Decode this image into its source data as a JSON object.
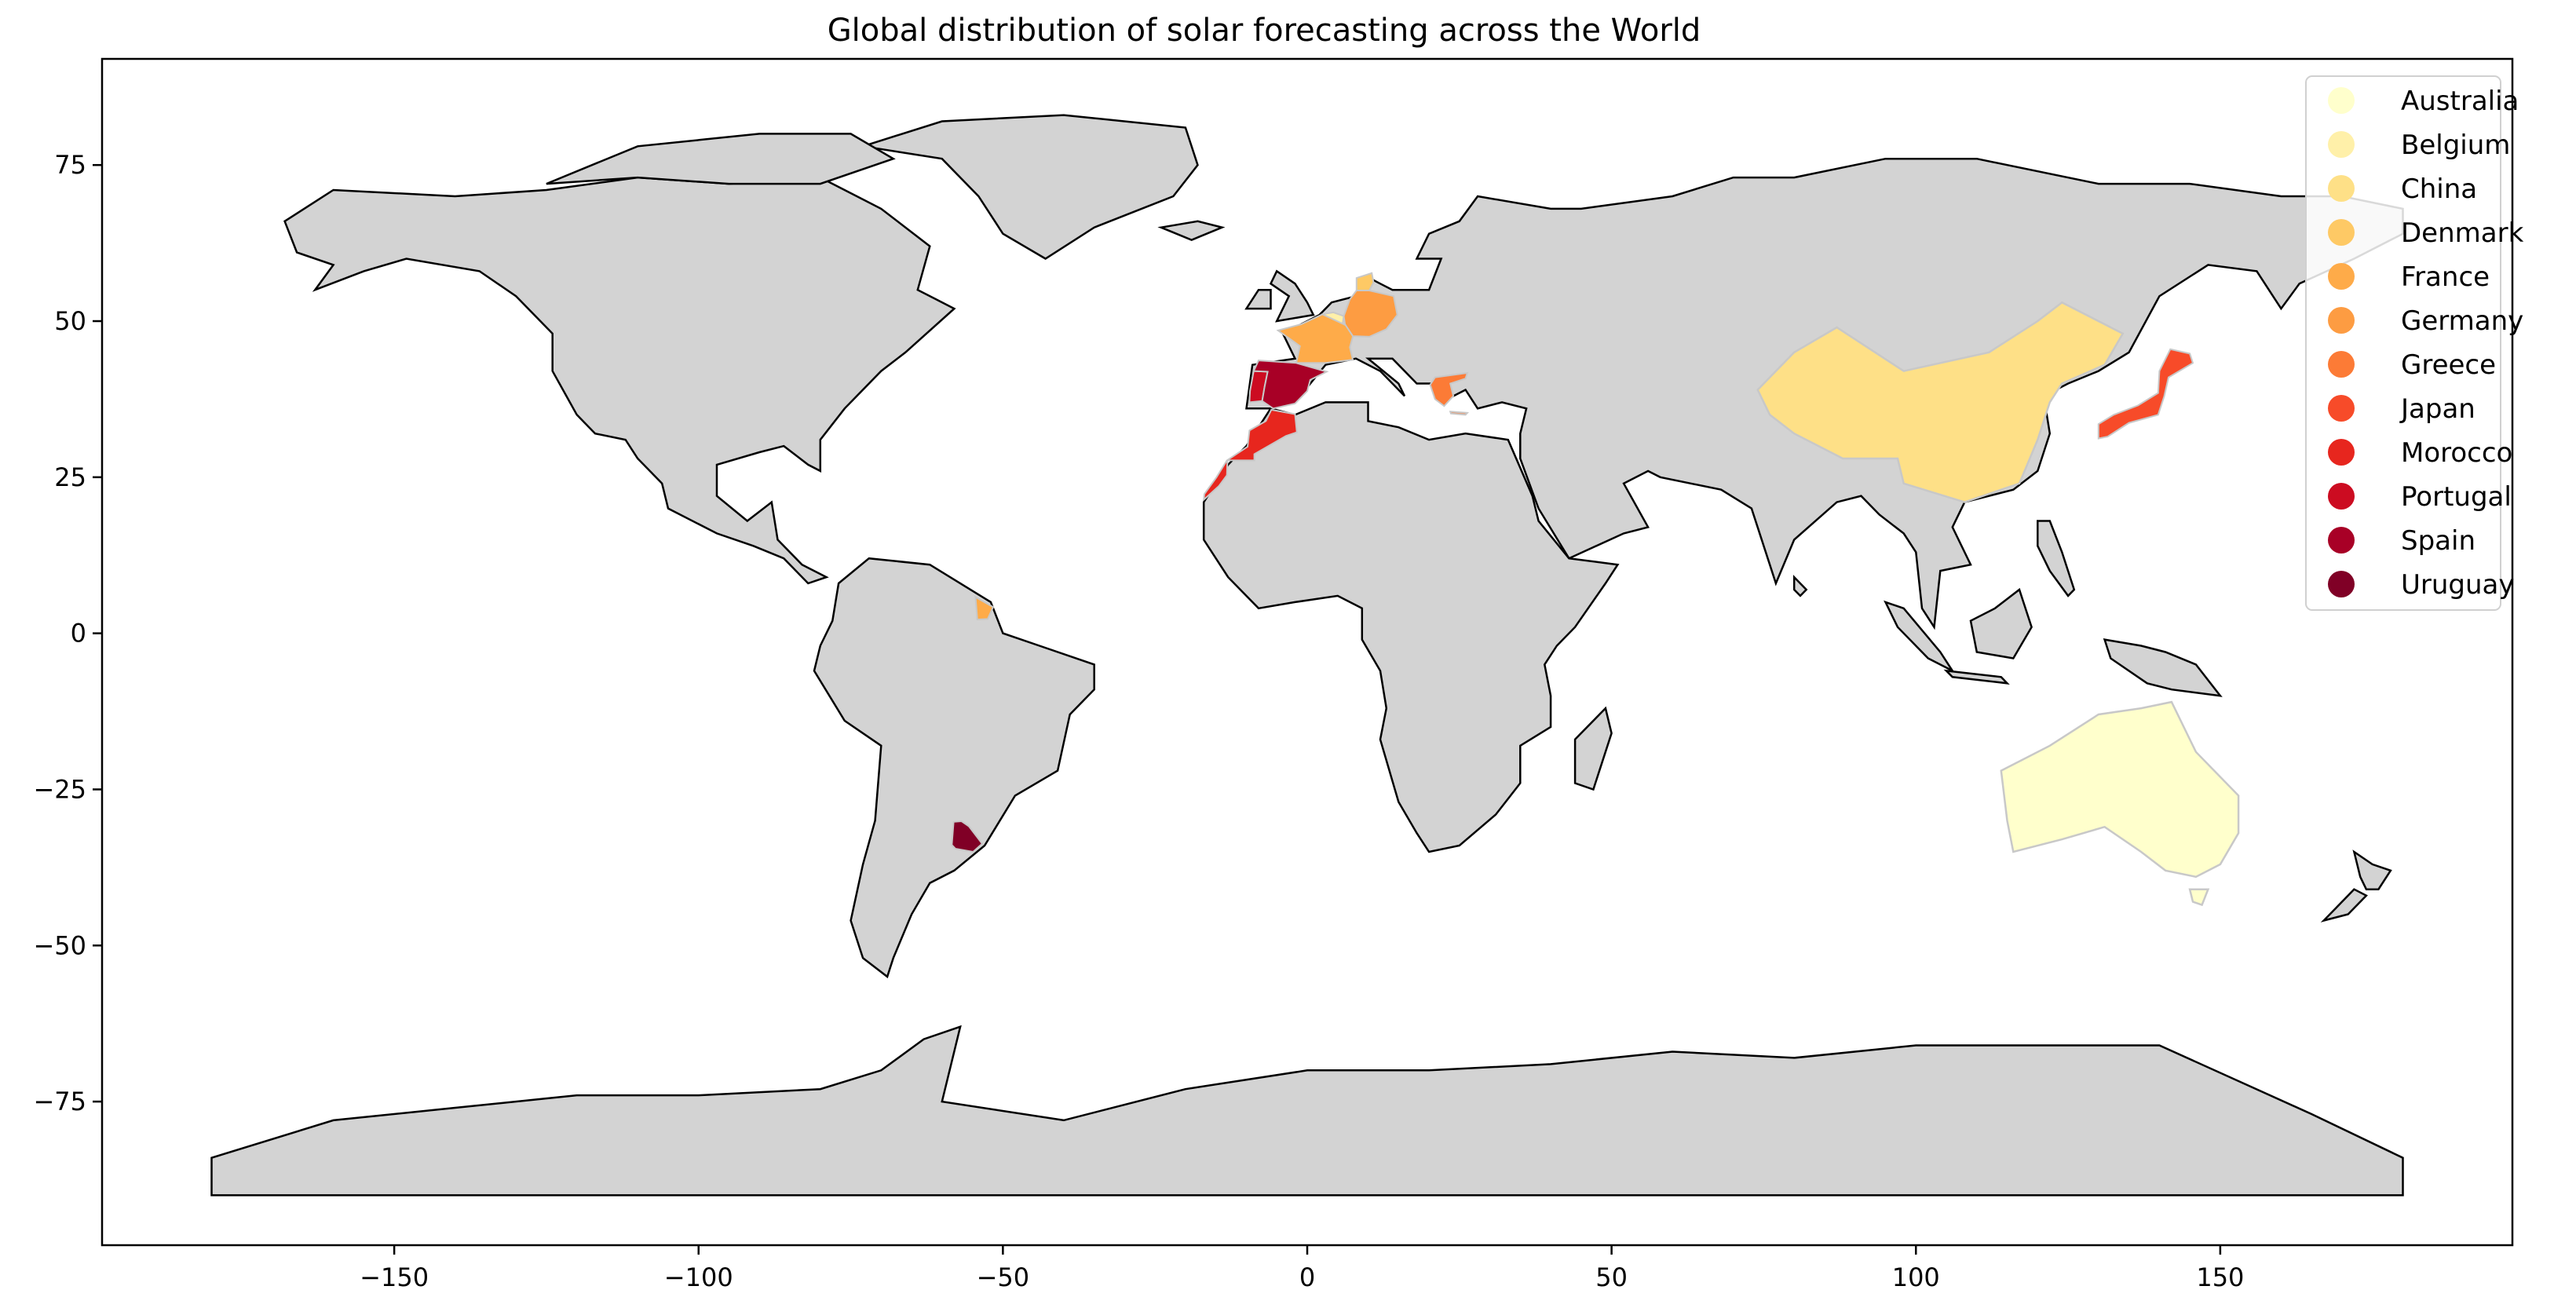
{
  "title": "Global distribution of solar forecasting across the World",
  "chart_data": {
    "type": "map",
    "projection": "plate-carree",
    "base_fill": "#d3d3d3",
    "ocean_fill": "#ffffff",
    "xlim": [
      -198,
      198
    ],
    "ylim": [
      -98,
      92
    ],
    "x_ticks": [
      -150,
      -100,
      -50,
      0,
      50,
      100,
      150
    ],
    "y_ticks": [
      75,
      50,
      25,
      0,
      -25,
      -50,
      -75
    ],
    "legend_position": "top-right",
    "colormap": "YlOrRd",
    "countries": [
      {
        "name": "Australia",
        "color": "#ffffcc"
      },
      {
        "name": "Belgium",
        "color": "#fff0a9"
      },
      {
        "name": "China",
        "color": "#fee087"
      },
      {
        "name": "Denmark",
        "color": "#fec965"
      },
      {
        "name": "France",
        "color": "#feab49"
      },
      {
        "name": "Germany",
        "color": "#fd9c42"
      },
      {
        "name": "Greece",
        "color": "#fc7b36"
      },
      {
        "name": "Japan",
        "color": "#f74b29"
      },
      {
        "name": "Morocco",
        "color": "#e7261e"
      },
      {
        "name": "Portugal",
        "color": "#cc0c21"
      },
      {
        "name": "Spain",
        "color": "#a80026"
      },
      {
        "name": "Uruguay",
        "color": "#800026"
      }
    ]
  }
}
